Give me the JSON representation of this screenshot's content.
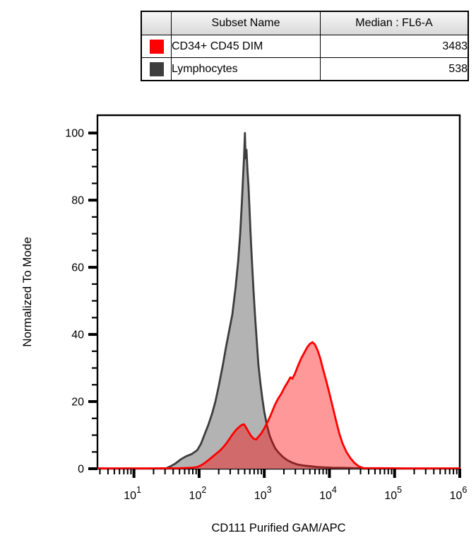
{
  "table": {
    "header": {
      "swatch": "",
      "subset": "Subset Name",
      "median": "Median : FL6-A"
    },
    "rows": [
      {
        "swatch_color": "#ff0000",
        "subset": "CD34+ CD45 DIM",
        "median": "3483"
      },
      {
        "swatch_color": "#3d3d3d",
        "subset": "Lymphocytes",
        "median": "538"
      }
    ]
  },
  "chart_data": {
    "type": "area",
    "subtype": "overlaid-flow-cytometry-histograms",
    "title": "",
    "xlabel": "CD111 Purified GAM/APC",
    "ylabel": "Normalized To Mode",
    "x_scale": "log10",
    "x_range_decades": [
      0.44,
      6.0
    ],
    "x_major_tick_decades": [
      1,
      2,
      3,
      4,
      5,
      6
    ],
    "x_tick_label_base": "10",
    "y_range": [
      0,
      105.3
    ],
    "y_major_ticks": [
      0,
      20,
      40,
      60,
      80,
      100
    ],
    "y_minor_step": 5,
    "grid": false,
    "legend_position": "table-above-plot",
    "series": [
      {
        "id": "lymphocytes",
        "name": "Lymphocytes",
        "median_fl6a": 538,
        "stroke": "#3d3d3d",
        "fill": "#b3b3b3",
        "fill_opacity": 1,
        "points": [
          [
            1.48,
            0
          ],
          [
            1.56,
            0.7
          ],
          [
            1.64,
            1.6
          ],
          [
            1.72,
            2.8
          ],
          [
            1.8,
            3.7
          ],
          [
            1.88,
            4.3
          ],
          [
            1.97,
            5.5
          ],
          [
            2.03,
            7.5
          ],
          [
            2.09,
            10.5
          ],
          [
            2.14,
            13
          ],
          [
            2.2,
            16.5
          ],
          [
            2.25,
            20
          ],
          [
            2.3,
            24.5
          ],
          [
            2.36,
            30.5
          ],
          [
            2.41,
            36
          ],
          [
            2.46,
            41
          ],
          [
            2.51,
            46
          ],
          [
            2.56,
            54
          ],
          [
            2.6,
            62
          ],
          [
            2.63,
            70
          ],
          [
            2.655,
            79
          ],
          [
            2.675,
            87
          ],
          [
            2.69,
            93
          ],
          [
            2.703,
            100
          ],
          [
            2.713,
            92.5
          ],
          [
            2.727,
            95
          ],
          [
            2.742,
            89
          ],
          [
            2.758,
            84
          ],
          [
            2.775,
            77
          ],
          [
            2.79,
            70
          ],
          [
            2.81,
            62
          ],
          [
            2.835,
            53
          ],
          [
            2.86,
            45
          ],
          [
            2.885,
            38
          ],
          [
            2.91,
            31
          ],
          [
            2.94,
            25.5
          ],
          [
            2.97,
            21
          ],
          [
            3.0,
            17
          ],
          [
            3.04,
            13
          ],
          [
            3.08,
            10
          ],
          [
            3.12,
            8
          ],
          [
            3.17,
            6
          ],
          [
            3.22,
            4.8
          ],
          [
            3.28,
            3.6
          ],
          [
            3.35,
            2.6
          ],
          [
            3.43,
            1.8
          ],
          [
            3.52,
            1.2
          ],
          [
            3.62,
            0.9
          ],
          [
            3.72,
            0.7
          ],
          [
            3.82,
            0.5
          ],
          [
            3.92,
            0.4
          ],
          [
            4.05,
            0.3
          ],
          [
            4.2,
            0.25
          ],
          [
            4.35,
            0.2
          ],
          [
            4.5,
            0.1
          ],
          [
            4.55,
            0
          ]
        ]
      },
      {
        "id": "cd34-cd45-dim",
        "name": "CD34+ CD45 DIM",
        "median_fl6a": 3483,
        "stroke": "#ff0000",
        "fill": "#ff0000",
        "fill_opacity": 0.4,
        "points": [
          [
            0.44,
            0.1
          ],
          [
            1.2,
            0.1
          ],
          [
            1.7,
            0.15
          ],
          [
            1.9,
            0.3
          ],
          [
            1.97,
            0.5
          ],
          [
            2.02,
            0.9
          ],
          [
            2.07,
            1.5
          ],
          [
            2.12,
            2.2
          ],
          [
            2.17,
            3.0
          ],
          [
            2.22,
            3.8
          ],
          [
            2.27,
            4.6
          ],
          [
            2.32,
            5.4
          ],
          [
            2.37,
            6.4
          ],
          [
            2.42,
            7.6
          ],
          [
            2.47,
            9.0
          ],
          [
            2.52,
            10.4
          ],
          [
            2.57,
            11.6
          ],
          [
            2.62,
            12.5
          ],
          [
            2.66,
            13.1
          ],
          [
            2.69,
            13.2
          ],
          [
            2.72,
            12.3
          ],
          [
            2.76,
            10.9
          ],
          [
            2.8,
            9.7
          ],
          [
            2.84,
            8.9
          ],
          [
            2.875,
            8.7
          ],
          [
            2.91,
            9.5
          ],
          [
            2.95,
            10.4
          ],
          [
            3.0,
            12.0
          ],
          [
            3.05,
            13.9
          ],
          [
            3.1,
            16.0
          ],
          [
            3.16,
            18.9
          ],
          [
            3.21,
            20.8
          ],
          [
            3.26,
            22.3
          ],
          [
            3.31,
            24.2
          ],
          [
            3.36,
            25.8
          ],
          [
            3.4,
            27.2
          ],
          [
            3.43,
            26.8
          ],
          [
            3.47,
            28.3
          ],
          [
            3.52,
            30.8
          ],
          [
            3.57,
            33.0
          ],
          [
            3.62,
            34.8
          ],
          [
            3.66,
            36.2
          ],
          [
            3.7,
            37.2
          ],
          [
            3.74,
            37.7
          ],
          [
            3.78,
            36.9
          ],
          [
            3.82,
            35.2
          ],
          [
            3.86,
            32.8
          ],
          [
            3.9,
            29.8
          ],
          [
            3.95,
            26.2
          ],
          [
            4.0,
            22.4
          ],
          [
            4.05,
            18.4
          ],
          [
            4.1,
            14.4
          ],
          [
            4.15,
            10.6
          ],
          [
            4.2,
            7.6
          ],
          [
            4.26,
            5.0
          ],
          [
            4.32,
            3.2
          ],
          [
            4.38,
            1.8
          ],
          [
            4.45,
            0.7
          ],
          [
            4.52,
            0.2
          ],
          [
            5.2,
            0.1
          ],
          [
            6.0,
            0.1
          ]
        ]
      }
    ]
  },
  "colors": {
    "cd34_red": "#ff0000",
    "lymphocyte_gray_fill": "#b3b3b3",
    "lymphocyte_gray_stroke": "#3d3d3d",
    "axis_black": "#000000",
    "table_header_bg": "#e8e8e8"
  }
}
